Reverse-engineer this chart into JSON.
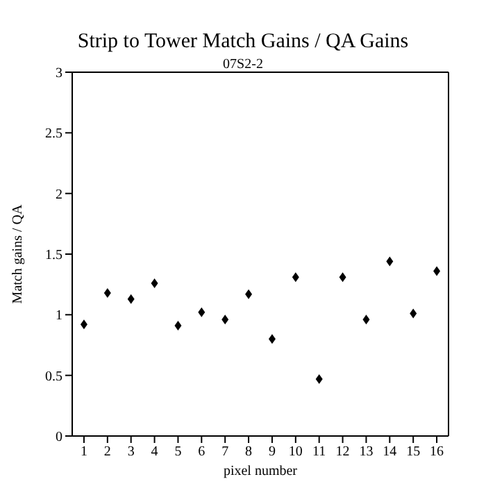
{
  "chart_data": {
    "type": "scatter",
    "title": "Strip to Tower Match Gains / QA Gains",
    "subtitle": "07S2-2",
    "xlabel": "pixel number",
    "ylabel": "Match gains / QA",
    "x": [
      1,
      2,
      3,
      4,
      5,
      6,
      7,
      8,
      9,
      10,
      11,
      12,
      13,
      14,
      15,
      16
    ],
    "values": [
      0.92,
      1.18,
      1.13,
      1.26,
      0.91,
      1.02,
      0.96,
      1.17,
      0.8,
      1.31,
      0.47,
      1.31,
      0.96,
      1.44,
      1.01,
      1.36
    ],
    "color": "#000000",
    "marker": "diamond",
    "xlim": [
      0.5,
      16.5
    ],
    "xticks": [
      1,
      2,
      3,
      4,
      5,
      6,
      7,
      8,
      9,
      10,
      11,
      12,
      13,
      14,
      15,
      16
    ],
    "ylim": [
      0,
      3
    ],
    "yticks": [
      0,
      0.5,
      1,
      1.5,
      2,
      2.5,
      3
    ]
  }
}
